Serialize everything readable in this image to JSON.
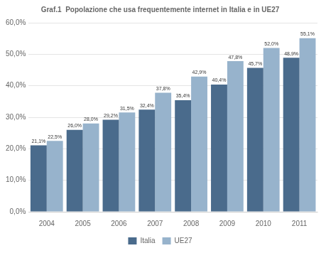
{
  "chart_data": {
    "type": "bar",
    "title": "Graf.1  Popolazione che usa frequentemente internet in Italia e in UE27",
    "categories": [
      "2004",
      "2005",
      "2006",
      "2007",
      "2008",
      "2009",
      "2010",
      "2011"
    ],
    "series": [
      {
        "name": "Italia",
        "color": "#4a6b8c",
        "values": [
          21.1,
          26.0,
          29.2,
          32.4,
          35.4,
          40.4,
          45.7,
          48.9
        ],
        "value_labels": [
          "21,1%",
          "26,0%",
          "29,2%",
          "32,4%",
          "35,4%",
          "40,4%",
          "45,7%",
          "48,9%"
        ]
      },
      {
        "name": "UE27",
        "color": "#97b3cc",
        "values": [
          22.5,
          28.0,
          31.5,
          37.8,
          42.9,
          47.8,
          52.0,
          55.1
        ],
        "value_labels": [
          "22,5%",
          "28,0%",
          "31,5%",
          "37,8%",
          "42,9%",
          "47,8%",
          "52,0%",
          "55,1%"
        ]
      }
    ],
    "ylim": [
      0,
      60
    ],
    "yticks": [
      {
        "value": 0,
        "label": "0,0%"
      },
      {
        "value": 10,
        "label": "10,0%"
      },
      {
        "value": 20,
        "label": "20,0%"
      },
      {
        "value": 30,
        "label": "30,0%"
      },
      {
        "value": 40,
        "label": "40,0%"
      },
      {
        "value": 50,
        "label": "50,0%"
      },
      {
        "value": 60,
        "label": "60,0%"
      }
    ],
    "grid": true,
    "legend": "bottom",
    "data_labels": true
  }
}
